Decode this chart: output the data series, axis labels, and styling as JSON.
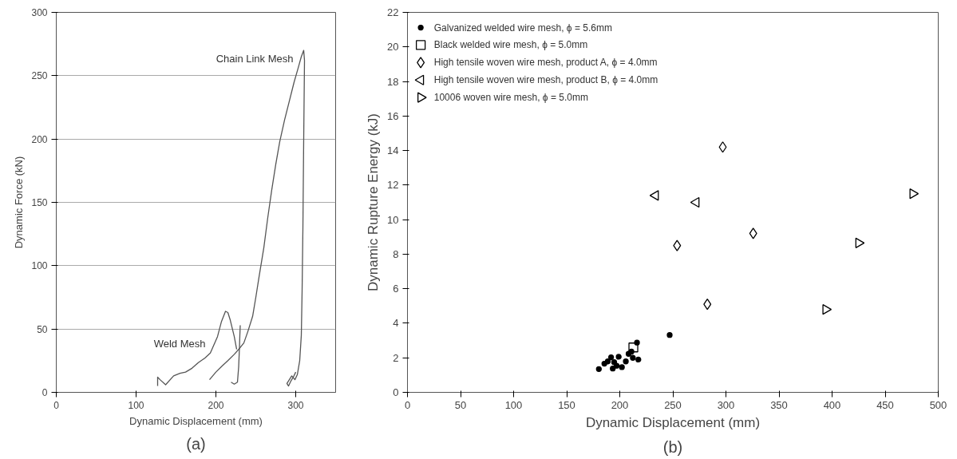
{
  "chart_data": [
    {
      "type": "line",
      "xlabel": "Dynamic Displacement (mm)",
      "ylabel": "Dynamic Force (kN)",
      "xlim": [
        0,
        350
      ],
      "ylim": [
        0,
        300
      ],
      "xticks": [
        0,
        100,
        200,
        300
      ],
      "yticks": [
        0,
        50,
        100,
        150,
        200,
        250,
        300
      ],
      "grid": "y",
      "legend": false,
      "series": [
        {
          "color": "#555555",
          "x": [
            127,
            127,
            130,
            137,
            147,
            155,
            162,
            170,
            178,
            186,
            193,
            202,
            207,
            212,
            215,
            218,
            223,
            226
          ],
          "values": [
            5,
            12,
            10,
            6,
            13,
            15,
            16,
            19,
            23.5,
            27,
            31,
            44,
            56,
            64,
            63,
            57,
            44,
            34
          ]
        },
        {
          "color": "#555555",
          "x": [
            192,
            200,
            208,
            215,
            223,
            230,
            235,
            240,
            246,
            250,
            254,
            260,
            265,
            270,
            275,
            280,
            286,
            292,
            298,
            303,
            307,
            310,
            311,
            310,
            309,
            308,
            307,
            305,
            302,
            299,
            295,
            292,
            289,
            291,
            294,
            297,
            300
          ],
          "values": [
            10,
            16,
            21,
            25,
            30,
            35,
            39,
            48,
            60,
            75,
            91,
            114,
            138,
            160,
            180,
            198,
            215,
            230,
            245,
            256,
            265,
            270,
            262,
            200,
            130,
            80,
            45,
            25,
            14,
            10,
            13,
            10,
            7,
            5,
            9,
            12,
            16
          ]
        },
        {
          "color": "#555555",
          "x": [
            219,
            223,
            227,
            228.5,
            229.5,
            230,
            230.5
          ],
          "values": [
            8,
            6.5,
            8,
            20,
            35,
            45,
            53
          ]
        }
      ],
      "annotations": [
        {
          "text": "Chain Link Mesh",
          "x": 303,
          "y": 256
        },
        {
          "text": "Weld Mesh",
          "x": 193,
          "y": 31
        },
        "(a)"
      ]
    },
    {
      "type": "scatter",
      "xlabel": "Dynamic Displacement (mm)",
      "ylabel": "Dynamic Rupture Energy (kJ)",
      "xlim": [
        0,
        500
      ],
      "ylim": [
        0,
        22
      ],
      "xticks": [
        0,
        50,
        100,
        150,
        200,
        250,
        300,
        350,
        400,
        450,
        500
      ],
      "yticks": [
        0,
        2,
        4,
        6,
        8,
        10,
        12,
        14,
        16,
        18,
        20,
        22
      ],
      "grid": false,
      "legend": "top left",
      "series": [
        {
          "name": "Galvanized welded wire mesh, ϕ = 5.6mm",
          "color": "#000000",
          "marker": "circle",
          "x": [
            180.3,
            185.5,
            188.7,
            191.8,
            193.4,
            194.7,
            197,
            199,
            202,
            205.7,
            208.3,
            211,
            212.3,
            216.2,
            217.5,
            247
          ],
          "values": [
            1.35,
            1.66,
            1.79,
            2.03,
            1.38,
            1.75,
            1.54,
            2.06,
            1.46,
            1.79,
            2.23,
            2.36,
            2.0,
            2.88,
            1.9,
            3.32
          ]
        },
        {
          "name": "Black welded wire mesh, ϕ = 5.0mm",
          "color": "#000000",
          "marker": "square",
          "x": [
            212.8
          ],
          "values": [
            2.6
          ]
        },
        {
          "name": "High tensile woven wire mesh, product A, ϕ = 4.0mm",
          "color": "#000000",
          "marker": "diamond",
          "x": [
            254,
            282.5,
            297,
            325.7
          ],
          "values": [
            8.5,
            5.1,
            14.2,
            9.2
          ]
        },
        {
          "name": "High tensile woven wire mesh, product B, ϕ = 4.0mm",
          "color": "#000000",
          "marker": "triangle-left",
          "x": [
            233.7,
            272
          ],
          "values": [
            11.4,
            11.0
          ]
        },
        {
          "name": "10006    woven wire mesh, ϕ = 5.0mm",
          "color": "#000000",
          "marker": "triangle-right",
          "x": [
            394,
            425,
            476
          ],
          "values": [
            4.8,
            8.65,
            11.5
          ]
        }
      ],
      "annotations": [
        "(b)"
      ]
    }
  ]
}
